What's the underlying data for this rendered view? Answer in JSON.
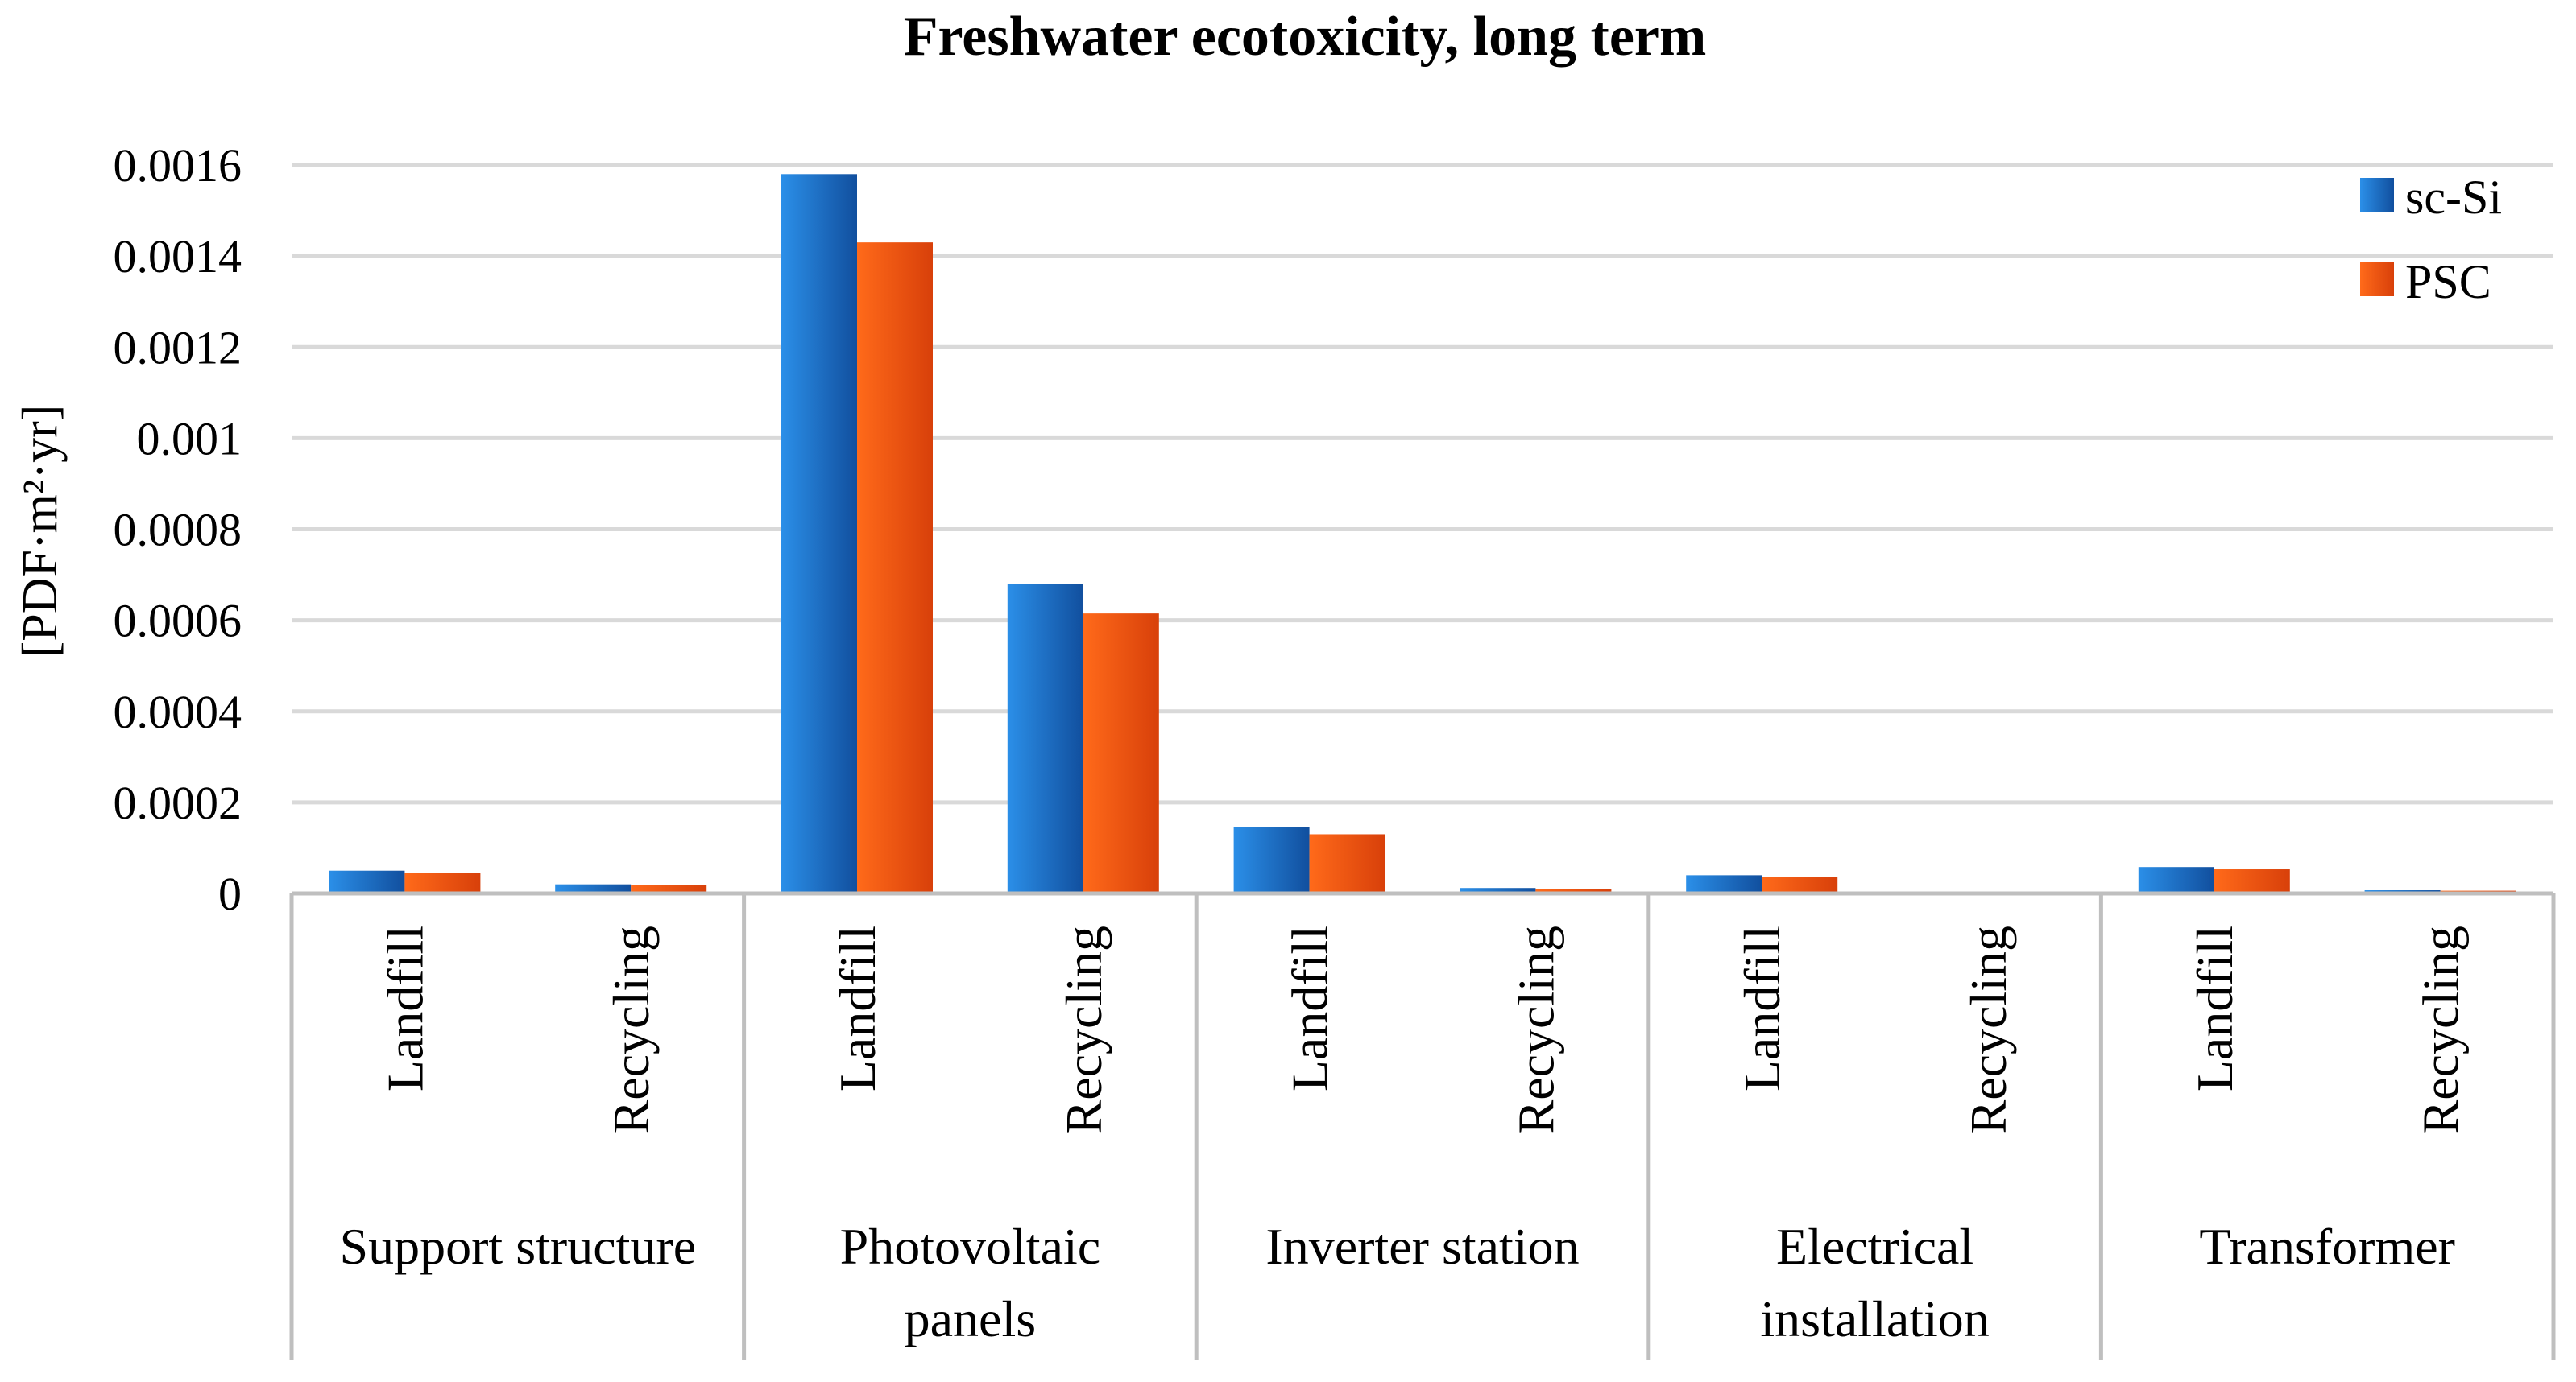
{
  "chart_data": {
    "type": "bar",
    "title": "Freshwater ecotoxicity, long term",
    "ylabel": "[PDF·m²·yr]",
    "xlabel": "",
    "ylim": [
      0,
      0.0016
    ],
    "yticks": [
      0,
      0.0002,
      0.0004,
      0.0006,
      0.0008,
      0.001,
      0.0012,
      0.0014,
      0.0016
    ],
    "ytick_labels": [
      "0",
      "0.0002",
      "0.0004",
      "0.0006",
      "0.0008",
      "0.001",
      "0.0012",
      "0.0014",
      "0.0016"
    ],
    "grid": true,
    "legend_position": "top-right",
    "groups": [
      {
        "label_lines": [
          "Support structure"
        ],
        "categories": [
          "Landfill",
          "Recycling"
        ]
      },
      {
        "label_lines": [
          "Photovoltaic",
          "panels"
        ],
        "categories": [
          "Landfill",
          "Recycling"
        ]
      },
      {
        "label_lines": [
          "Inverter station"
        ],
        "categories": [
          "Landfill",
          "Recycling"
        ]
      },
      {
        "label_lines": [
          "Electrical",
          "installation"
        ],
        "categories": [
          "Landfill",
          "Recycling"
        ]
      },
      {
        "label_lines": [
          "Transformer"
        ],
        "categories": [
          "Landfill",
          "Recycling"
        ]
      }
    ],
    "series": [
      {
        "name": "sc-Si",
        "color": "#1565c0",
        "color_light": "#2a8ae6",
        "values": [
          5e-05,
          2e-05,
          0.00158,
          0.00068,
          0.000145,
          1.2e-05,
          4e-05,
          5e-07,
          5.8e-05,
          7e-06
        ]
      },
      {
        "name": "PSC",
        "color": "#ff5a0a",
        "color_light": "#ff7a2e",
        "values": [
          4.5e-05,
          1.8e-05,
          0.00143,
          0.000615,
          0.00013,
          1e-05,
          3.6e-05,
          4e-07,
          5.3e-05,
          6e-06
        ]
      }
    ]
  }
}
